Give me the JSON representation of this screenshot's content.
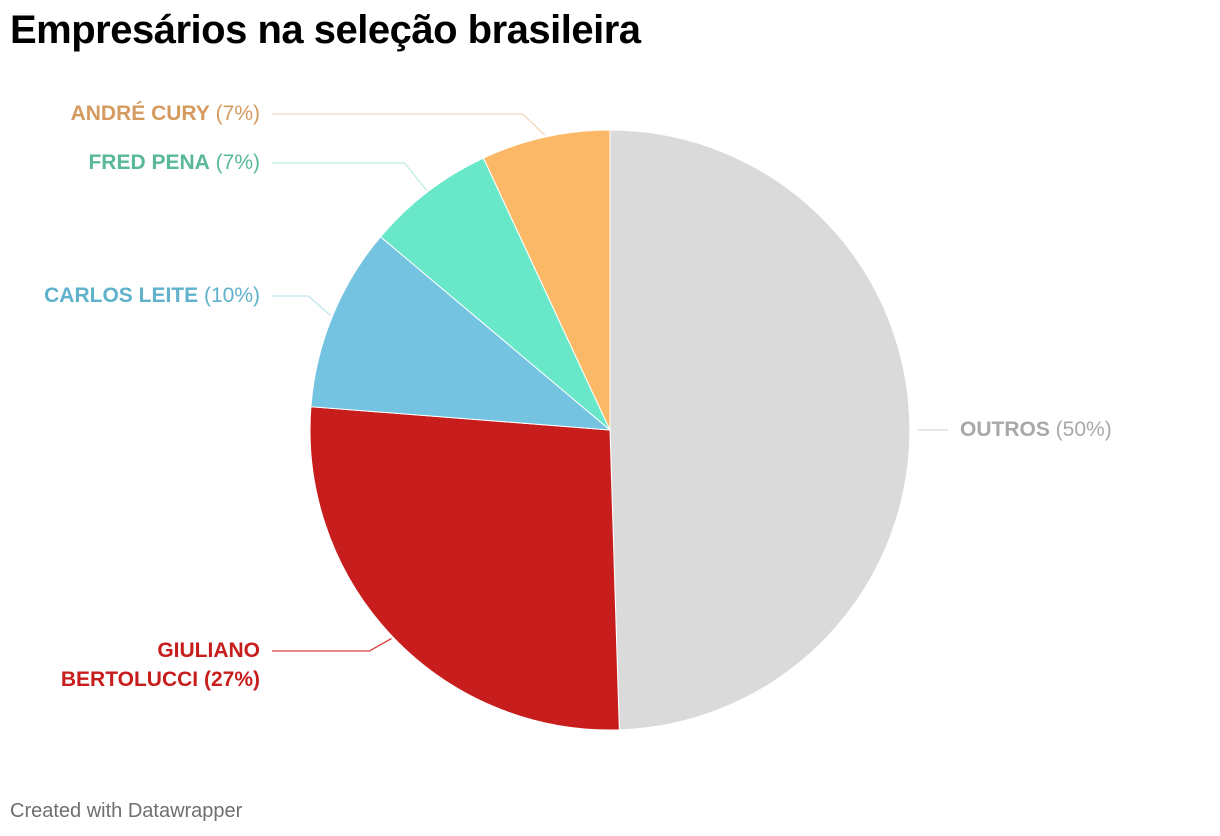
{
  "title": "Empresários na seleção brasileira",
  "footer": "Created with Datawrapper",
  "chart_data": {
    "type": "pie",
    "title": "Empresários na seleção brasileira",
    "start": "12 o'clock, clockwise",
    "slices": [
      {
        "label": "OUTROS",
        "value": 50,
        "pct_text": "(50%)",
        "color": "#dadada",
        "label_color": "#a8a8a8",
        "leader_color": "#d6d6d6",
        "pct_bold": false
      },
      {
        "label": "GIULIANO BERTOLUCCI",
        "label_lines": [
          "GIULIANO",
          "BERTOLUCCI"
        ],
        "value": 27,
        "pct_text": "(27%)",
        "color": "#c71d1d",
        "label_color": "#c71d1d",
        "leader_color": "#d9413f",
        "pct_bold": true
      },
      {
        "label": "CARLOS LEITE",
        "value": 10,
        "pct_text": "(10%)",
        "color": "#74c3e0",
        "label_color": "#5fb1cc",
        "leader_color": "#bfe3ef",
        "pct_bold": false
      },
      {
        "label": "FRED PENA",
        "value": 7,
        "pct_text": "(7%)",
        "color": "#68e8c9",
        "label_color": "#58b897",
        "leader_color": "#bdeee0",
        "pct_bold": false
      },
      {
        "label": "ANDRÉ CURY",
        "value": 7,
        "pct_text": "(7%)",
        "color": "#fbb967",
        "label_color": "#d49a5e",
        "leader_color": "#f5d8bd",
        "pct_bold": false
      }
    ]
  }
}
